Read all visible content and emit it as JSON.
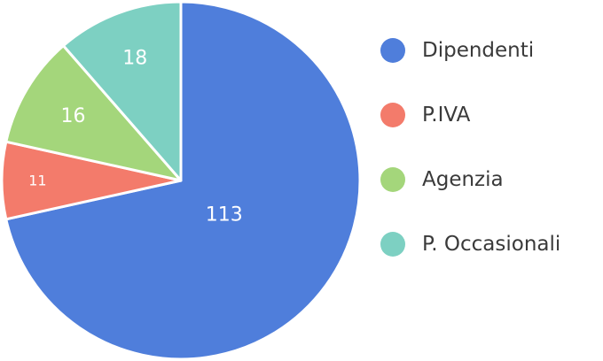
{
  "chart_data": {
    "type": "pie",
    "categories": [
      "Dipendenti",
      "P.IVA",
      "Agenzia",
      "P. Occasionali"
    ],
    "values": [
      113,
      11,
      16,
      18
    ],
    "colors": [
      "#4f7edb",
      "#f37b6b",
      "#a4d67b",
      "#7dd0c2"
    ],
    "title": "",
    "legend": "right",
    "data_labels": true
  }
}
